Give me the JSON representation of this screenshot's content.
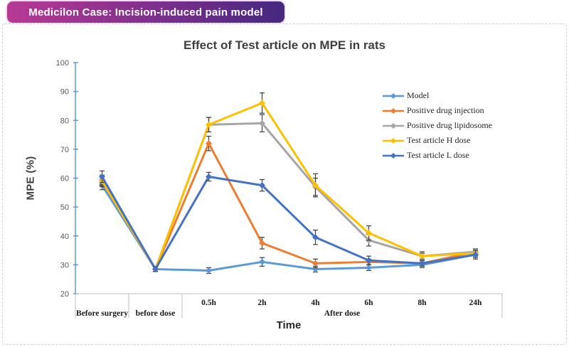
{
  "header": {
    "title": "Medicilon Case: Incision-induced pain model",
    "gradient_from": "#b73a94",
    "gradient_to": "#45287f"
  },
  "chart_data": {
    "type": "line",
    "title": "Effect of Test article on MPE in rats",
    "xlabel": "Time",
    "ylabel": "MPE (%)",
    "ylim": [
      20,
      100
    ],
    "ytick_step": 10,
    "grid": false,
    "legend_position": "inside-top-right",
    "axis_color": "#5b9bd5",
    "table_line_color": "#bfbfbf",
    "error_bar_color": "#3f3f3f",
    "categories": [
      "Before surgery",
      "before dose",
      "0.5h",
      "2h",
      "4h",
      "6h",
      "8h",
      "24h"
    ],
    "axis_groups": [
      {
        "label": "Before surgery",
        "from": 0,
        "to": 0,
        "show_ticks": false
      },
      {
        "label": "before dose",
        "from": 1,
        "to": 1,
        "show_ticks": false
      },
      {
        "label": "After dose",
        "from": 2,
        "to": 7,
        "show_ticks": true
      }
    ],
    "series": [
      {
        "name": "Model",
        "color": "#5b9bd5",
        "values": [
          57.5,
          28.5,
          28,
          31,
          28.5,
          29,
          30,
          33.5
        ],
        "errors": [
          1.5,
          0.8,
          1,
          1.5,
          1,
          1,
          1,
          1
        ]
      },
      {
        "name": "Positive drug injection",
        "color": "#ed7d31",
        "values": [
          59,
          28.5,
          72,
          37.5,
          30.5,
          31,
          30.5,
          34.5
        ],
        "errors": [
          1.5,
          0.8,
          2.5,
          2,
          1.5,
          1,
          1,
          1
        ]
      },
      {
        "name": "Positive drug lipidosome",
        "color": "#a5a5a5",
        "values": [
          59.5,
          28.5,
          78.5,
          79,
          57,
          38.5,
          33,
          34.5
        ],
        "errors": [
          1.5,
          0.8,
          2.5,
          3,
          3,
          2,
          1,
          1
        ]
      },
      {
        "name": "Test article H dose",
        "color": "#ffc000",
        "values": [
          59,
          28.5,
          78.5,
          86,
          57.5,
          41,
          33,
          34
        ],
        "errors": [
          2,
          0.8,
          2.5,
          3.5,
          4,
          2.5,
          1.5,
          1
        ]
      },
      {
        "name": "Test article L dose",
        "color": "#4472c4",
        "values": [
          60.5,
          28.5,
          60.5,
          57.5,
          39.5,
          31.5,
          30.5,
          33.5
        ],
        "errors": [
          2,
          0.8,
          1.5,
          2,
          2.5,
          1.5,
          1,
          1.5
        ]
      }
    ]
  }
}
